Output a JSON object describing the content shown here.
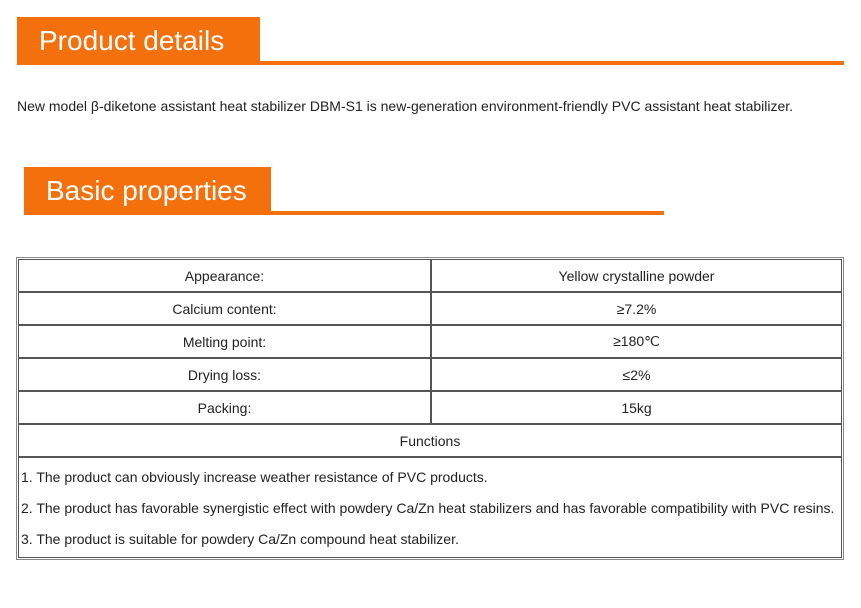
{
  "section1": {
    "title": "Product details",
    "intro": "New model β-diketone assistant heat stabilizer DBM-S1 is new-generation environment-friendly PVC assistant heat stabilizer."
  },
  "section2": {
    "title": "Basic properties"
  },
  "properties": [
    {
      "label": "Appearance:",
      "value": "Yellow crystalline powder"
    },
    {
      "label": "Calcium content:",
      "value": "≥7.2%"
    },
    {
      "label": "Melting point:",
      "value": "≥180℃"
    },
    {
      "label": "Drying loss:",
      "value": "≤2%"
    },
    {
      "label": "Packing:",
      "value": "15kg"
    }
  ],
  "functions": {
    "title": "Functions",
    "items": [
      "1. The product can obviously increase weather resistance of PVC products.",
      "2. The product has favorable synergistic effect with powdery Ca/Zn heat stabilizers and has favorable compatibility with PVC resins.",
      "3. The product is suitable for powdery Ca/Zn compound heat stabilizer."
    ]
  },
  "colors": {
    "accent": "#f4700d"
  }
}
